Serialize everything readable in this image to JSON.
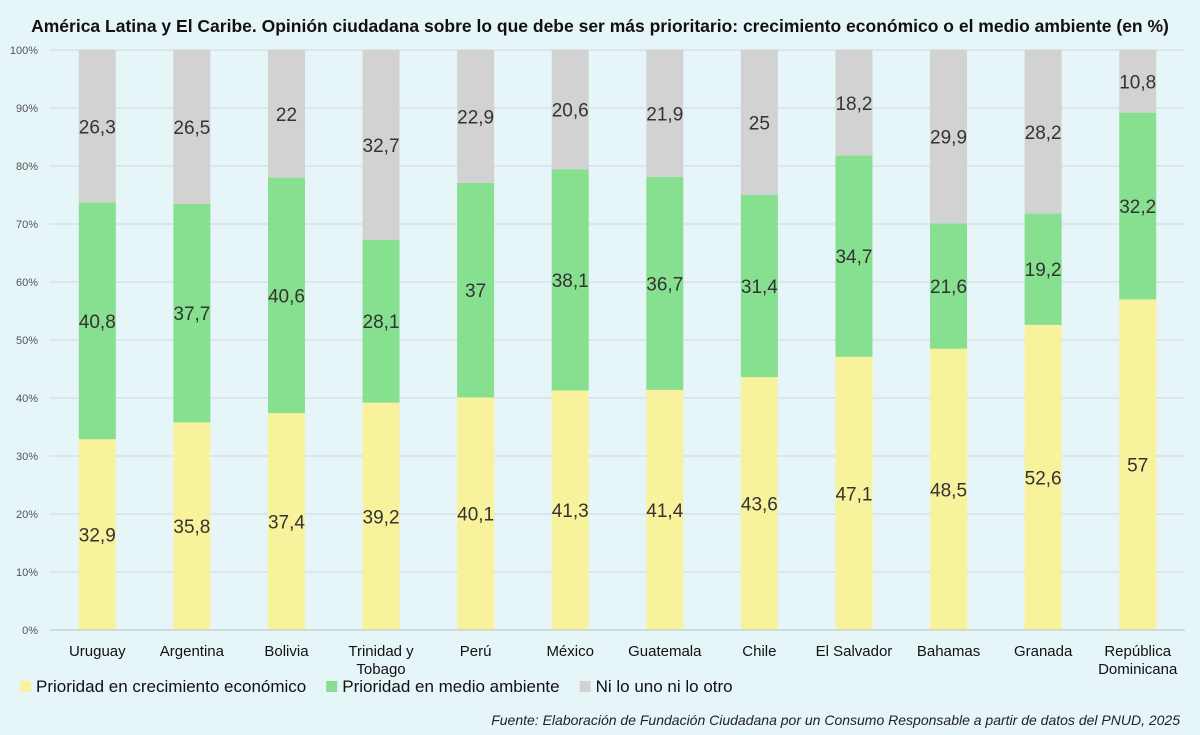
{
  "chart_data": {
    "type": "bar",
    "stacked": true,
    "percent_stacked": true,
    "title": "América Latina y El Caribe. Opinión ciudadana sobre lo que debe ser más prioritario: crecimiento económico o el medio ambiente (en %)",
    "source": "Fuente: Elaboración de Fundación Ciudadana por un Consumo Responsable a partir de datos del PNUD, 2025",
    "categories": [
      [
        "Uruguay"
      ],
      [
        "Argentina"
      ],
      [
        "Bolivia"
      ],
      [
        "Trinidad y",
        "Tobago"
      ],
      [
        "Perú"
      ],
      [
        "México"
      ],
      [
        "Guatemala"
      ],
      [
        "Chile"
      ],
      [
        "El Salvador"
      ],
      [
        "Bahamas"
      ],
      [
        "Granada"
      ],
      [
        "República",
        "Dominicana"
      ]
    ],
    "series": [
      {
        "name": "Prioridad en crecimiento económico",
        "color": "#f8f29c",
        "values": [
          32.9,
          35.8,
          37.4,
          39.2,
          40.1,
          41.3,
          41.4,
          43.6,
          47.1,
          48.5,
          52.6,
          57
        ],
        "labels": [
          "32,9",
          "35,8",
          "37,4",
          "39,2",
          "40,1",
          "41,3",
          "41,4",
          "43,6",
          "47,1",
          "48,5",
          "52,6",
          "57"
        ]
      },
      {
        "name": "Prioridad en medio ambiente",
        "color": "#86e08f",
        "values": [
          40.8,
          37.7,
          40.6,
          28.1,
          37,
          38.1,
          36.7,
          31.4,
          34.7,
          21.6,
          19.2,
          32.2
        ],
        "labels": [
          "40,8",
          "37,7",
          "40,6",
          "28,1",
          "37",
          "38,1",
          "36,7",
          "31,4",
          "34,7",
          "21,6",
          "19,2",
          "32,2"
        ]
      },
      {
        "name": "Ni lo uno ni lo otro",
        "color": "#d2d2d2",
        "values": [
          26.3,
          26.5,
          22,
          32.7,
          22.9,
          20.6,
          21.9,
          25,
          18.2,
          29.9,
          28.2,
          10.8
        ],
        "labels": [
          "26,3",
          "26,5",
          "22",
          "32,7",
          "22,9",
          "20,6",
          "21,9",
          "25",
          "18,2",
          "29,9",
          "28,2",
          "10,8"
        ]
      }
    ],
    "ylim": [
      0,
      100
    ],
    "yticks": [
      "0%",
      "10%",
      "20%",
      "30%",
      "40%",
      "50%",
      "60%",
      "70%",
      "80%",
      "90%",
      "100%"
    ],
    "grid": true,
    "legend_position": "bottom-left"
  }
}
